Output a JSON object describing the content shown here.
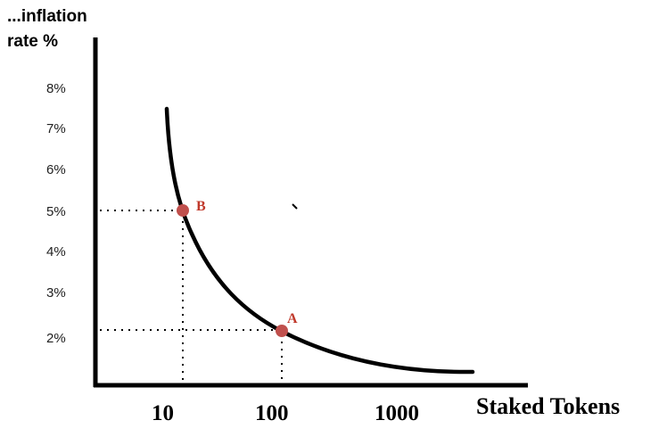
{
  "chart_data": {
    "type": "line",
    "ylabel_partial": "...inflation",
    "ylabel": "rate %",
    "xlabel": "Staked  Tokens",
    "x_scale": "log",
    "y_ticks": [
      "2%",
      "3%",
      "4%",
      "5%",
      "6%",
      "7%",
      "8%"
    ],
    "x_ticks": [
      "10",
      "100",
      "1000"
    ],
    "series": [
      {
        "x": [
          10,
          12,
          15,
          20,
          30,
          50,
          80,
          120,
          200,
          400,
          800,
          1500,
          2500
        ],
        "y": [
          7.4,
          6.2,
          5.0,
          4.1,
          3.3,
          2.6,
          2.2,
          1.9,
          1.55,
          1.3,
          1.15,
          1.1,
          1.1
        ]
      }
    ],
    "points": [
      {
        "label": "B",
        "x": 15,
        "y": 5.0
      },
      {
        "label": "A",
        "x": 110,
        "y": 2.0
      }
    ],
    "grid": false,
    "colors": {
      "curve": "#000000",
      "point": "#c0504d",
      "point_label": "#c0392b"
    }
  }
}
